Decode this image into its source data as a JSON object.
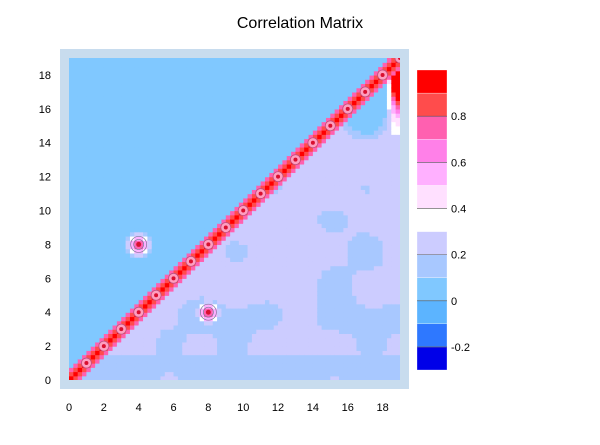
{
  "chart_data": {
    "type": "heatmap",
    "title": "Correlation Matrix",
    "xlabel": "",
    "ylabel": "",
    "x_range": [
      0,
      19
    ],
    "y_range": [
      0,
      19
    ],
    "x_ticks": [
      "0",
      "2",
      "4",
      "6",
      "8",
      "10",
      "12",
      "14",
      "16",
      "18"
    ],
    "y_ticks": [
      "0",
      "2",
      "4",
      "6",
      "8",
      "10",
      "12",
      "14",
      "16",
      "18"
    ],
    "grid": false,
    "diagonal_value": 1.0,
    "off_diagonal_peaks": [
      {
        "i": 4,
        "j": 8,
        "value": 0.8
      },
      {
        "i": 8,
        "j": 4,
        "value": 0.8
      }
    ],
    "upper_triangle_typical_range": [
      -0.2,
      0.1
    ],
    "lower_triangle_typical_range": [
      0.15,
      0.3
    ],
    "colorbar": {
      "levels": [
        -0.3,
        -0.2,
        -0.1,
        0.0,
        0.1,
        0.2,
        0.3,
        0.4,
        0.5,
        0.6,
        0.7,
        0.8,
        0.9,
        1.0
      ],
      "colors": [
        "#0000e8",
        "#2e78ff",
        "#5cb4ff",
        "#80c8ff",
        "#a8c8ff",
        "#ccccff",
        "#ffffff",
        "#ffe0ff",
        "#ffb0ff",
        "#ff80e8",
        "#ff60b0",
        "#ff4c4c",
        "#ff0000"
      ],
      "tick_labels": [
        "-0.2",
        "0",
        "0.2",
        "0.4",
        "0.6",
        "0.8"
      ]
    },
    "frame_color": "#c8dcee"
  }
}
